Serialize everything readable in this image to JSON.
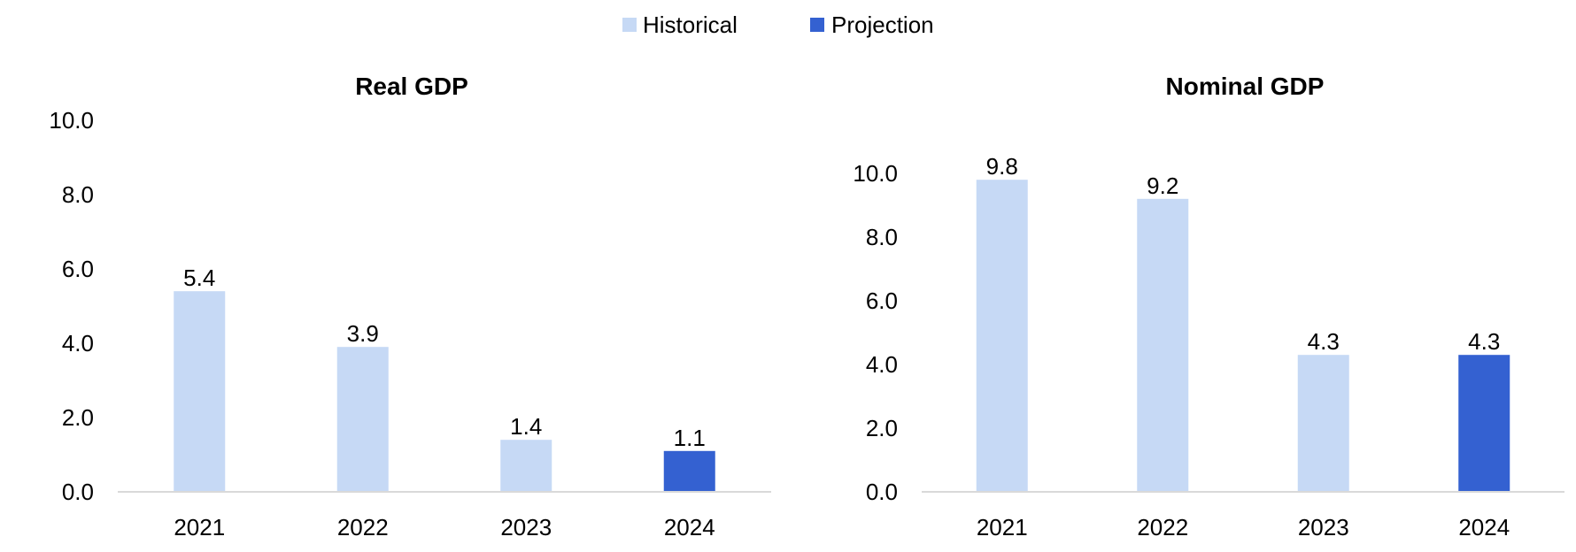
{
  "legend": {
    "items": [
      {
        "label": "Historical",
        "color": "#c6d9f5"
      },
      {
        "label": "Projection",
        "color": "#3461d1"
      }
    ]
  },
  "chart_data": [
    {
      "type": "bar",
      "title": "Real GDP",
      "categories": [
        "2021",
        "2022",
        "2023",
        "2024"
      ],
      "values": [
        5.4,
        3.9,
        1.4,
        1.1
      ],
      "data_labels": [
        "5.4",
        "3.9",
        "1.4",
        "1.1"
      ],
      "bar_kind": [
        "Historical",
        "Historical",
        "Historical",
        "Projection"
      ],
      "ylim": [
        0,
        10
      ],
      "yticks": [
        "0.0",
        "2.0",
        "4.0",
        "6.0",
        "8.0",
        "10.0"
      ],
      "grid": false,
      "legend_position": "top-center"
    },
    {
      "type": "bar",
      "title": "Nominal GDP",
      "categories": [
        "2021",
        "2022",
        "2023",
        "2024"
      ],
      "values": [
        9.8,
        9.2,
        4.3,
        4.3
      ],
      "data_labels": [
        "9.8",
        "9.2",
        "4.3",
        "4.3"
      ],
      "bar_kind": [
        "Historical",
        "Historical",
        "Historical",
        "Projection"
      ],
      "ylim": [
        0,
        10
      ],
      "yticks": [
        "0.0",
        "2.0",
        "4.0",
        "6.0",
        "8.0",
        "10.0"
      ],
      "grid": false,
      "legend_position": "top-center"
    }
  ]
}
